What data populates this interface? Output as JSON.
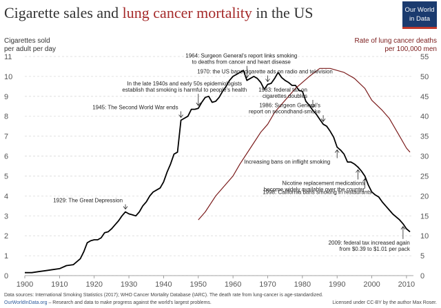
{
  "title": {
    "prefix": "Cigarette sales and ",
    "highlight": "lung cancer mortality",
    "suffix": " in the US"
  },
  "logo": {
    "line1": "Our World",
    "line2": "in Data",
    "bg_color": "#1b3b6f"
  },
  "colors": {
    "cigarettes": "#000000",
    "lung_cancer": "#7a1a1a",
    "highlight": "#a52a2a",
    "grid": "#d9d9d9"
  },
  "chart_data": {
    "type": "line",
    "title": "Cigarette sales and lung cancer mortality in the US",
    "left_axis": {
      "label_line1": "Cigarettes sold",
      "label_line2": "per adult per day",
      "range": [
        0,
        11
      ],
      "ticks": [
        "0",
        "1",
        "2",
        "3",
        "4",
        "5",
        "6",
        "7",
        "8",
        "9",
        "10",
        "11"
      ]
    },
    "right_axis": {
      "label_line1": "Rate of lung cancer deaths",
      "label_line2": "per 100,000 men",
      "range": [
        0,
        55
      ],
      "ticks": [
        "0",
        "5",
        "10",
        "15",
        "20",
        "25",
        "30",
        "35",
        "40",
        "45",
        "50",
        "55"
      ]
    },
    "x_axis": {
      "range": [
        1900,
        2012
      ],
      "ticks": [
        "1900",
        "1910",
        "1920",
        "1930",
        "1940",
        "1950",
        "1960",
        "1970",
        "1980",
        "1990",
        "2000",
        "2010"
      ]
    },
    "grid": true,
    "series": [
      {
        "name": "Cigarettes sold per adult per day",
        "axis": "left",
        "x": [
          1900,
          1902,
          1904,
          1906,
          1908,
          1910,
          1912,
          1914,
          1916,
          1917,
          1918,
          1919,
          1920,
          1921,
          1922,
          1923,
          1924,
          1925,
          1926,
          1927,
          1928,
          1929,
          1930,
          1931,
          1932,
          1933,
          1934,
          1935,
          1936,
          1937,
          1938,
          1939,
          1940,
          1941,
          1942,
          1943,
          1944,
          1945,
          1946,
          1947,
          1948,
          1949,
          1950,
          1951,
          1952,
          1953,
          1954,
          1955,
          1956,
          1957,
          1958,
          1959,
          1960,
          1961,
          1962,
          1963,
          1964,
          1965,
          1966,
          1967,
          1968,
          1969,
          1970,
          1971,
          1972,
          1973,
          1974,
          1975,
          1976,
          1977,
          1978,
          1979,
          1980,
          1981,
          1982,
          1983,
          1984,
          1985,
          1986,
          1987,
          1988,
          1989,
          1990,
          1991,
          1992,
          1993,
          1994,
          1995,
          1996,
          1997,
          1998,
          1999,
          2000,
          2001,
          2002,
          2003,
          2004,
          2005,
          2006,
          2007,
          2008,
          2009,
          2010,
          2011
        ],
        "values": [
          0.15,
          0.15,
          0.2,
          0.25,
          0.3,
          0.35,
          0.5,
          0.55,
          0.85,
          1.2,
          1.65,
          1.75,
          1.8,
          1.8,
          1.9,
          2.15,
          2.2,
          2.35,
          2.55,
          2.75,
          3.0,
          3.2,
          3.1,
          3.05,
          3.0,
          3.2,
          3.5,
          3.7,
          4.0,
          4.2,
          4.3,
          4.4,
          4.7,
          5.2,
          5.6,
          6.1,
          6.2,
          7.8,
          7.9,
          8.0,
          8.35,
          8.35,
          8.4,
          8.7,
          8.95,
          9.0,
          8.7,
          8.75,
          8.95,
          9.25,
          9.5,
          9.8,
          10.0,
          10.1,
          10.2,
          10.3,
          9.8,
          9.9,
          10.0,
          9.9,
          9.7,
          9.35,
          9.6,
          9.65,
          9.9,
          10.2,
          9.95,
          9.8,
          9.7,
          9.55,
          9.55,
          9.3,
          9.25,
          8.75,
          8.55,
          8.3,
          8.1,
          7.85,
          7.6,
          7.5,
          7.25,
          6.95,
          6.45,
          6.3,
          6.1,
          5.7,
          5.7,
          5.6,
          5.45,
          5.25,
          5.0,
          4.55,
          4.2,
          4.05,
          3.95,
          3.7,
          3.5,
          3.3,
          3.1,
          2.95,
          2.8,
          2.6,
          2.35,
          2.2
        ]
      },
      {
        "name": "Rate of lung cancer deaths per 100,000 men",
        "axis": "right",
        "x": [
          1950,
          1952,
          1955,
          1958,
          1960,
          1962,
          1965,
          1968,
          1970,
          1972,
          1975,
          1978,
          1980,
          1982,
          1985,
          1988,
          1990,
          1992,
          1995,
          1998,
          2000,
          2003,
          2005,
          2008,
          2010,
          2011
        ],
        "values": [
          14,
          16,
          20,
          23,
          25,
          28,
          32,
          36,
          38,
          41,
          44,
          47,
          48.5,
          50,
          52,
          52,
          51.5,
          51,
          49.5,
          47,
          44,
          41.5,
          39.5,
          35,
          32,
          31
        ]
      }
    ],
    "annotations": [
      {
        "year": 1929,
        "series": 0,
        "lines": [
          "1929: The Great Depression"
        ],
        "anchor": "end",
        "direction": "down"
      },
      {
        "year": 1945,
        "series": 0,
        "lines": [
          "1945: The Second World War ends"
        ],
        "anchor": "end",
        "direction": "down"
      },
      {
        "year": 1950,
        "series": 0,
        "lines": [
          "In the late 1940s and early 50s epidemiologists",
          "establish that smoking is harmful to people's health"
        ],
        "anchor": "middle",
        "direction": "down"
      },
      {
        "year": 1964,
        "series": 0,
        "lines": [
          "1964: Surgeon General's report links smoking",
          "to deaths from cancer and heart disease"
        ],
        "anchor": "middle",
        "direction": "down"
      },
      {
        "year": 1970,
        "series": 0,
        "lines": [
          "1970: the US bans cigarette ads on radio and television"
        ],
        "anchor": "middle",
        "direction": "down"
      },
      {
        "year": 1983,
        "series": 0,
        "lines": [
          "1983: federal tax on",
          "cigarettes doubles"
        ],
        "anchor": "end",
        "direction": "down"
      },
      {
        "year": 1986,
        "series": 0,
        "lines": [
          "1986: Surgeon General's",
          "report on secondhand-smoke"
        ],
        "anchor": "end",
        "direction": "down"
      },
      {
        "year": 1990,
        "series": 0,
        "lines": [
          "Increasing bans on inflight smoking"
        ],
        "anchor": "end",
        "direction": "up"
      },
      {
        "year": 1996,
        "series": 0,
        "lines": [
          "Nicotine replacement medications",
          "become widely available over the counter"
        ],
        "anchor": "end",
        "direction": "up"
      },
      {
        "year": 1998,
        "series": 0,
        "lines": [
          "1998: California bans smoking in restaurants"
        ],
        "anchor": "end",
        "direction": "up"
      },
      {
        "year": 2009,
        "series": 0,
        "lines": [
          "2009: federal tax increased again",
          "from $0.39 to $1.01 per pack"
        ],
        "anchor": "end",
        "direction": "up"
      }
    ]
  },
  "footer": {
    "sources": "Data sources: International Smoking Statistics (2017); WHO Cancer Mortality Database (IARC). The death rate from lung-cancer is age-standardized.",
    "site": "OurWorldInData.org",
    "tagline": " – Research and data to make progress against the world's largest problems.",
    "license": "Licensed under CC-BY by the author Max Roser."
  }
}
